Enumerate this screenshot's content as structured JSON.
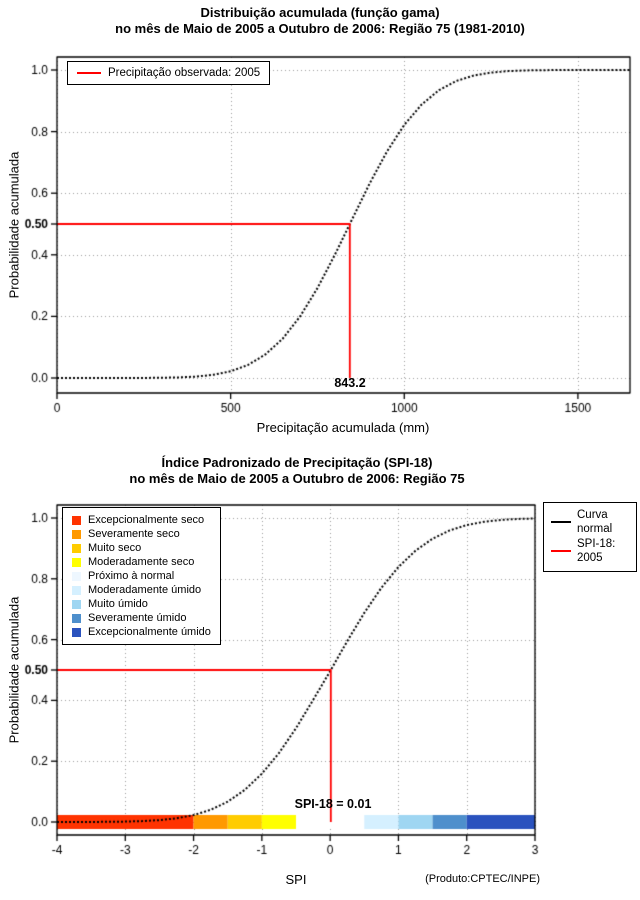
{
  "page": {
    "footnote": "(Produto:CPTEC/INPE)"
  },
  "chart_data": [
    {
      "type": "line",
      "title": "Distribuição acumulada (função gama)",
      "subtitle": "no mês de Maio de 2005 a Outubro de 2006: Região 75 (1981-2010)",
      "xlabel": "Precipitação acumulada (mm)",
      "ylabel": "Probabilidade acumulada",
      "xlim": [
        0,
        1650
      ],
      "ylim": [
        0,
        1
      ],
      "grid": true,
      "xticks": {
        "values": [
          0,
          500,
          1000,
          1500
        ],
        "labels": [
          "0",
          "500",
          "1000",
          "1500"
        ]
      },
      "yticks": {
        "values": [
          0,
          0.2,
          0.4,
          0.6,
          0.8,
          1.0
        ],
        "labels": [
          "0.0",
          "0.2",
          "0.4",
          "0.6",
          "0.8",
          "1.0"
        ]
      },
      "ytick_special": {
        "value": 0.5,
        "label": "0.50"
      },
      "curve": {
        "name": "Distribuição gama acumulada",
        "color": "#000000",
        "x": [
          0,
          50,
          100,
          150,
          200,
          250,
          300,
          350,
          400,
          450,
          500,
          550,
          600,
          650,
          700,
          750,
          800,
          843.2,
          900,
          950,
          1000,
          1050,
          1100,
          1150,
          1200,
          1250,
          1300,
          1350,
          1400,
          1450,
          1500,
          1550,
          1600,
          1650
        ],
        "y": [
          0,
          0,
          0,
          0.0001,
          0.0001,
          0.0002,
          0.0007,
          0.0019,
          0.0045,
          0.0104,
          0.0217,
          0.0423,
          0.0764,
          0.1278,
          0.1999,
          0.2918,
          0.3997,
          0.5,
          0.6308,
          0.735,
          0.8218,
          0.888,
          0.9346,
          0.9645,
          0.9821,
          0.9916,
          0.9964,
          0.9986,
          0.9995,
          0.9998,
          0.9999,
          1,
          1,
          1
        ]
      },
      "marker": {
        "x": 843.2,
        "y": 0.5,
        "label": "843.2",
        "color": "#ff0000"
      },
      "legend": [
        {
          "label": "Precipitação observada: 2005",
          "color": "#ff0000"
        }
      ]
    },
    {
      "type": "line",
      "title": "Índice Padronizado de Precipitação (SPI-18)",
      "subtitle": "no mês de Maio de 2005 a Outubro de 2006: Região 75",
      "xlabel": "SPI",
      "ylabel": "Probabilidade acumulada",
      "xlim": [
        -4,
        3
      ],
      "ylim": [
        0,
        1
      ],
      "grid": true,
      "xticks": {
        "values": [
          -4,
          -3,
          -2,
          -1,
          0,
          1,
          2,
          3
        ],
        "labels": [
          "-4",
          "-3",
          "-2",
          "-1",
          "0",
          "1",
          "2",
          "3"
        ]
      },
      "yticks": {
        "values": [
          0,
          0.2,
          0.4,
          0.6,
          0.8,
          1.0
        ],
        "labels": [
          "0.0",
          "0.2",
          "0.4",
          "0.6",
          "0.8",
          "1.0"
        ]
      },
      "ytick_special": {
        "value": 0.5,
        "label": "0.50"
      },
      "curve": {
        "name": "Curva normal",
        "color": "#000000",
        "x": [
          -4,
          -3.75,
          -3.5,
          -3.25,
          -3,
          -2.75,
          -2.5,
          -2.25,
          -2,
          -1.75,
          -1.5,
          -1.25,
          -1,
          -0.75,
          -0.5,
          -0.25,
          0,
          0.25,
          0.5,
          0.75,
          1,
          1.25,
          1.5,
          1.75,
          2,
          2.25,
          2.5,
          2.75,
          3
        ],
        "y": [
          0,
          0.0001,
          0.0002,
          0.0006,
          0.0013,
          0.003,
          0.0062,
          0.0122,
          0.0228,
          0.0401,
          0.0668,
          0.1056,
          0.1587,
          0.2266,
          0.3085,
          0.4013,
          0.496,
          0.5948,
          0.6879,
          0.7704,
          0.8389,
          0.8925,
          0.9319,
          0.9591,
          0.9767,
          0.9875,
          0.9936,
          0.9969,
          0.9985
        ]
      },
      "marker": {
        "x": 0.01,
        "y": 0.5,
        "label": "SPI-18 = 0.01",
        "color": "#ff0000"
      },
      "legend": [
        {
          "label": "Curva\nnormal",
          "color": "#000000"
        },
        {
          "label": "SPI-18: 2005",
          "color": "#ff0000"
        }
      ],
      "categories": [
        {
          "label": "Excepcionalmente seco",
          "color": "#ff3300"
        },
        {
          "label": "Severamente seco",
          "color": "#ff9900"
        },
        {
          "label": "Muito seco",
          "color": "#ffcc00"
        },
        {
          "label": "Moderadamente seco",
          "color": "#ffff00"
        },
        {
          "label": "Próximo à normal",
          "color": "#eef7ff"
        },
        {
          "label": "Moderadamente úmido",
          "color": "#d5f0ff"
        },
        {
          "label": "Muito úmido",
          "color": "#9fd6f2"
        },
        {
          "label": "Severamente úmido",
          "color": "#4e8fcc"
        },
        {
          "label": "Excepcionalmente úmido",
          "color": "#2a52be"
        }
      ],
      "colorbar": {
        "y": 0,
        "half_height": 7,
        "segments": [
          {
            "from": -4,
            "to": -2,
            "color": "#ff3300"
          },
          {
            "from": -2,
            "to": -1.5,
            "color": "#ff9900"
          },
          {
            "from": -1.5,
            "to": -1,
            "color": "#ffcc00"
          },
          {
            "from": -1,
            "to": -0.5,
            "color": "#ffff00"
          },
          {
            "from": -0.5,
            "to": 0.5,
            "color": "#ffffff"
          },
          {
            "from": 0.5,
            "to": 1,
            "color": "#d5f0ff"
          },
          {
            "from": 1,
            "to": 1.5,
            "color": "#9fd6f2"
          },
          {
            "from": 1.5,
            "to": 2,
            "color": "#4e8fcc"
          },
          {
            "from": 2,
            "to": 3,
            "color": "#2a52be"
          }
        ]
      }
    }
  ]
}
